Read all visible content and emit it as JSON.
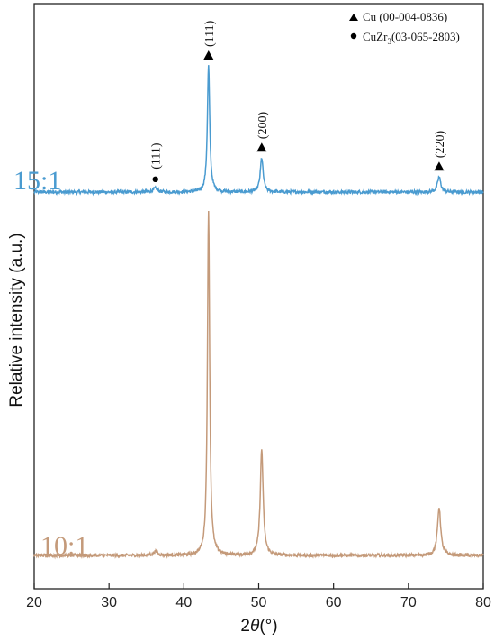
{
  "chart_data": {
    "type": "line",
    "title": "",
    "xlabel_parts": [
      "2",
      "θ",
      "(°)"
    ],
    "ylabel": "Relative intensity (a.u.)",
    "xlim": [
      20,
      80
    ],
    "xticks": [
      "20",
      "30",
      "40",
      "50",
      "60",
      "70",
      "80"
    ],
    "y_ticks_shown": false,
    "grid": false,
    "legend_position": "top-right",
    "legend": [
      {
        "marker": "triangle",
        "text": "Cu (00-004-0836)"
      },
      {
        "marker": "circle",
        "text_main": "CuZr",
        "text_sub": "3",
        "text_tail": "(03-065-2803)"
      }
    ],
    "series": [
      {
        "name": "15:1",
        "color": "#4a9bd0",
        "baseline": 0.0,
        "peaks": [
          {
            "x": 36.2,
            "height": 0.03,
            "width": 0.6
          },
          {
            "x": 43.3,
            "height": 1.0,
            "width": 0.32
          },
          {
            "x": 50.4,
            "height": 0.27,
            "width": 0.4
          },
          {
            "x": 74.1,
            "height": 0.12,
            "width": 0.45
          }
        ]
      },
      {
        "name": "10:1",
        "color": "#c49a7a",
        "baseline": 0.05,
        "peaks": [
          {
            "x": 36.2,
            "height": 0.03,
            "width": 0.6
          },
          {
            "x": 43.3,
            "height": 2.74,
            "width": 0.3
          },
          {
            "x": 50.4,
            "height": 0.84,
            "width": 0.4
          },
          {
            "x": 74.1,
            "height": 0.38,
            "width": 0.45
          }
        ]
      }
    ],
    "peak_annotations": [
      {
        "x": 36.2,
        "marker": "circle",
        "label": "(111)",
        "series": "15:1"
      },
      {
        "x": 43.3,
        "marker": "triangle",
        "label": "(111)",
        "series": "15:1"
      },
      {
        "x": 50.4,
        "marker": "triangle",
        "label": "(200)",
        "series": "15:1"
      },
      {
        "x": 74.1,
        "marker": "triangle",
        "label": "(220)",
        "series": "15:1"
      }
    ],
    "colors": {
      "axis": "#222222",
      "triangle": "#000000",
      "circle": "#000000"
    }
  }
}
